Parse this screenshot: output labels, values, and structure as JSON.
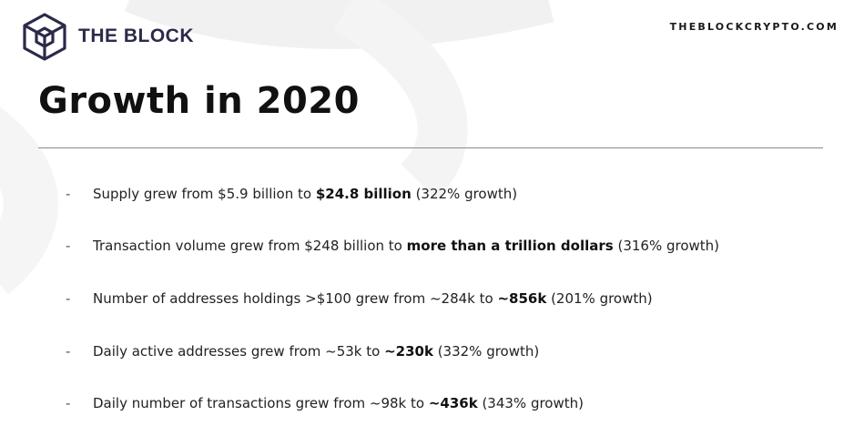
{
  "header": {
    "logo_icon": "the-block-cube-logo",
    "brand_name": "THE BLOCK",
    "site_url": "THEBLOCKCRYPTO.COM"
  },
  "title": "Growth in 2020",
  "bullets": [
    {
      "marker": "-",
      "pre": "Supply grew from $5.9 billion to ",
      "bold": "$24.8 billion",
      "post": " (322% growth)"
    },
    {
      "marker": "-",
      "pre": "Transaction volume grew from $248 billion to ",
      "bold": "more than a trillion dollars",
      "post": " (316% growth)"
    },
    {
      "marker": "-",
      "pre": "Number of addresses holdings >$100 grew from ~284k to ",
      "bold": "~856k",
      "post": " (201% growth)"
    },
    {
      "marker": "-",
      "pre": "Daily active addresses grew from ~53k to ",
      "bold": "~230k",
      "post": " (332% growth)"
    },
    {
      "marker": "-",
      "pre": "Daily number of transactions grew from ~98k to ",
      "bold": "~436k",
      "post": " (343% growth)"
    }
  ],
  "colors": {
    "brand": "#2b2a4a",
    "text": "#222222"
  }
}
